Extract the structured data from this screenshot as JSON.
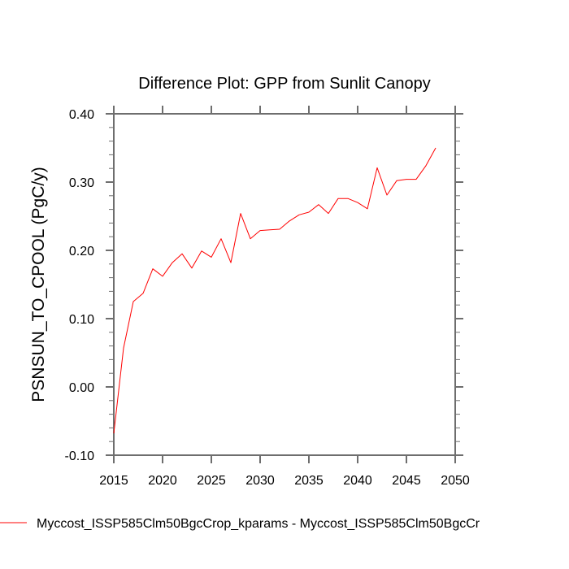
{
  "chart_data": {
    "type": "line",
    "title": "Difference Plot: GPP from Sunlit Canopy",
    "xlabel": "",
    "ylabel": "PSNSUN_TO_CPOOL  (PgC/y)",
    "xlim": [
      2015,
      2050
    ],
    "ylim": [
      -0.1,
      0.4
    ],
    "xticks": [
      2015,
      2020,
      2025,
      2030,
      2035,
      2040,
      2045,
      2050
    ],
    "xtick_labels": [
      "2015",
      "2020",
      "2025",
      "2030",
      "2035",
      "2040",
      "2045",
      "2050"
    ],
    "yticks": [
      -0.1,
      0.0,
      0.1,
      0.2,
      0.3,
      0.4
    ],
    "ytick_labels": [
      "-0.10",
      "0.00",
      "0.10",
      "0.20",
      "0.30",
      "0.40"
    ],
    "grid": false,
    "legend_position": "bottom",
    "series": [
      {
        "name": "Myccost_ISSP585Clm50BgcCrop_kparams - Myccost_ISSP585Clm50BgcCr",
        "color": "#ff0000",
        "x": [
          2015,
          2016,
          2017,
          2018,
          2019,
          2020,
          2021,
          2022,
          2023,
          2024,
          2025,
          2026,
          2027,
          2028,
          2029,
          2030,
          2031,
          2032,
          2033,
          2034,
          2035,
          2036,
          2037,
          2038,
          2039,
          2040,
          2041,
          2042,
          2043,
          2044,
          2045,
          2046,
          2047,
          2048
        ],
        "values": [
          -0.068,
          0.057,
          0.125,
          0.137,
          0.173,
          0.162,
          0.182,
          0.195,
          0.174,
          0.199,
          0.19,
          0.217,
          0.182,
          0.254,
          0.217,
          0.229,
          0.23,
          0.231,
          0.243,
          0.252,
          0.256,
          0.267,
          0.254,
          0.276,
          0.276,
          0.27,
          0.261,
          0.321,
          0.281,
          0.302,
          0.304,
          0.304,
          0.324,
          0.35
        ]
      }
    ]
  }
}
